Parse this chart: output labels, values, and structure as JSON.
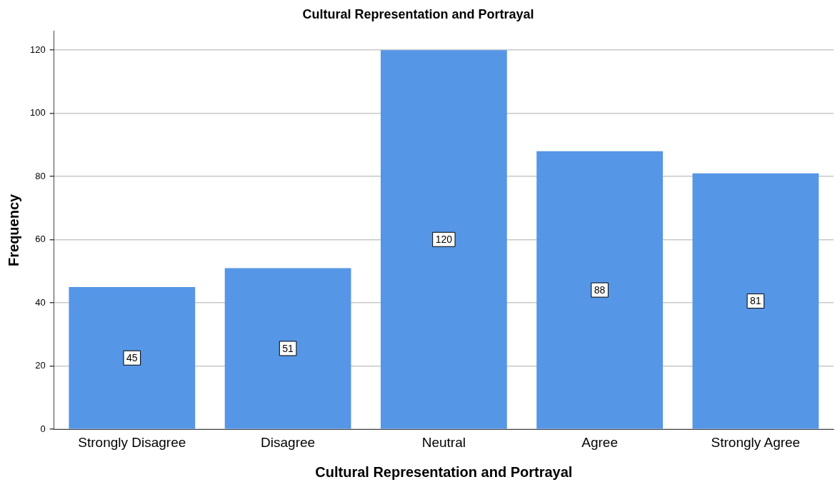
{
  "chart_data": {
    "type": "bar",
    "title": "Cultural Representation and Portrayal",
    "xlabel": "Cultural Representation and Portrayal",
    "ylabel": "Frequency",
    "categories": [
      "Strongly Disagree",
      "Disagree",
      "Neutral",
      "Agree",
      "Strongly Agree"
    ],
    "values": [
      45,
      51,
      120,
      88,
      81
    ],
    "color": "#5596e6",
    "ylim": [
      0,
      126
    ],
    "yticks": [
      0,
      20,
      40,
      60,
      80,
      100,
      120
    ],
    "grid": "y",
    "data_labels": true,
    "legend": false
  }
}
